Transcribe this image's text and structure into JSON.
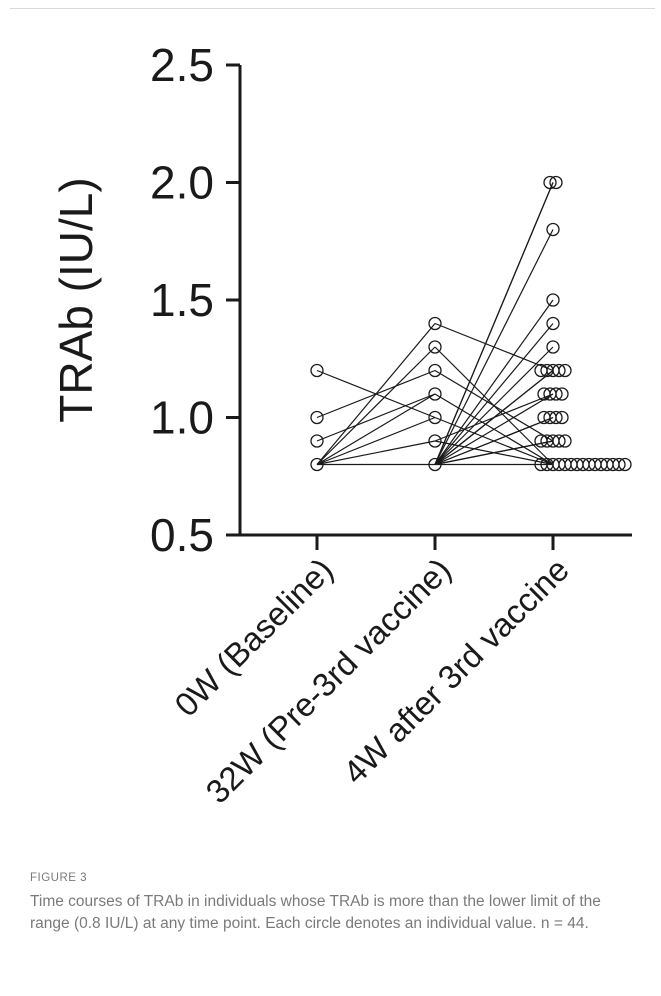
{
  "figure": {
    "label": "FIGURE 3",
    "caption": "Time courses of TRAb in individuals whose TRAb is more than the lower limit of the range (0.8 IU/L) at any time point. Each circle denotes an individual value. n = 44."
  },
  "chart_data": {
    "type": "scatter",
    "title": "",
    "xlabel": "",
    "ylabel": "TRAb (IU/L)",
    "categories": [
      "0W (Baseline)",
      "32W (Pre-3rd vaccine)",
      "4W after 3rd vaccine"
    ],
    "ylim": [
      0.5,
      2.5
    ],
    "yticks": [
      "0.5",
      "1.0",
      "1.5",
      "2.0",
      "2.5"
    ],
    "grid": false,
    "legend": "none",
    "marker": "open-circle",
    "colors": {
      "line": "#1a1a1a",
      "marker": "#1a1a1a"
    },
    "points_by_timepoint": [
      [
        1.2,
        1.0,
        0.9,
        0.8
      ],
      [
        1.4,
        1.3,
        1.2,
        1.1,
        1.0,
        0.9,
        0.8
      ],
      [
        2.0,
        2.0,
        1.8,
        1.5,
        1.4,
        1.3,
        1.2,
        1.2,
        1.2,
        1.2,
        1.2,
        1.1,
        1.1,
        1.1,
        1.1,
        1.0,
        1.0,
        1.0,
        1.0,
        0.9,
        0.9,
        0.9,
        0.9,
        0.9,
        0.8,
        0.8,
        0.8,
        0.8,
        0.8,
        0.8,
        0.8,
        0.8,
        0.8,
        0.8,
        0.8,
        0.8,
        0.8,
        0.8,
        0.8
      ]
    ],
    "segments": [
      [
        0,
        1.2,
        1,
        1.0
      ],
      [
        0,
        1.0,
        1,
        1.2
      ],
      [
        0,
        0.9,
        1,
        1.1
      ],
      [
        0,
        0.8,
        1,
        1.4
      ],
      [
        0,
        0.8,
        1,
        1.3
      ],
      [
        0,
        0.8,
        1,
        1.1
      ],
      [
        0,
        0.8,
        1,
        1.0
      ],
      [
        0,
        0.8,
        1,
        0.9
      ],
      [
        0,
        0.8,
        1,
        0.8
      ],
      [
        1,
        1.4,
        2,
        1.2
      ],
      [
        1,
        1.3,
        2,
        0.8
      ],
      [
        1,
        1.2,
        2,
        0.9
      ],
      [
        1,
        1.1,
        2,
        0.8
      ],
      [
        1,
        1.0,
        2,
        0.8
      ],
      [
        1,
        0.9,
        2,
        1.1
      ],
      [
        1,
        0.9,
        2,
        0.8
      ],
      [
        1,
        0.8,
        2,
        2.0
      ],
      [
        1,
        0.8,
        2,
        2.0
      ],
      [
        1,
        0.8,
        2,
        1.8
      ],
      [
        1,
        0.8,
        2,
        1.5
      ],
      [
        1,
        0.8,
        2,
        1.4
      ],
      [
        1,
        0.8,
        2,
        1.3
      ],
      [
        1,
        0.8,
        2,
        1.2
      ],
      [
        1,
        0.8,
        2,
        1.2
      ],
      [
        1,
        0.8,
        2,
        1.1
      ],
      [
        1,
        0.8,
        2,
        1.0
      ],
      [
        1,
        0.8,
        2,
        1.0
      ],
      [
        1,
        0.8,
        2,
        0.9
      ],
      [
        1,
        0.8,
        2,
        0.9
      ],
      [
        1,
        0.8,
        2,
        0.8
      ]
    ]
  }
}
